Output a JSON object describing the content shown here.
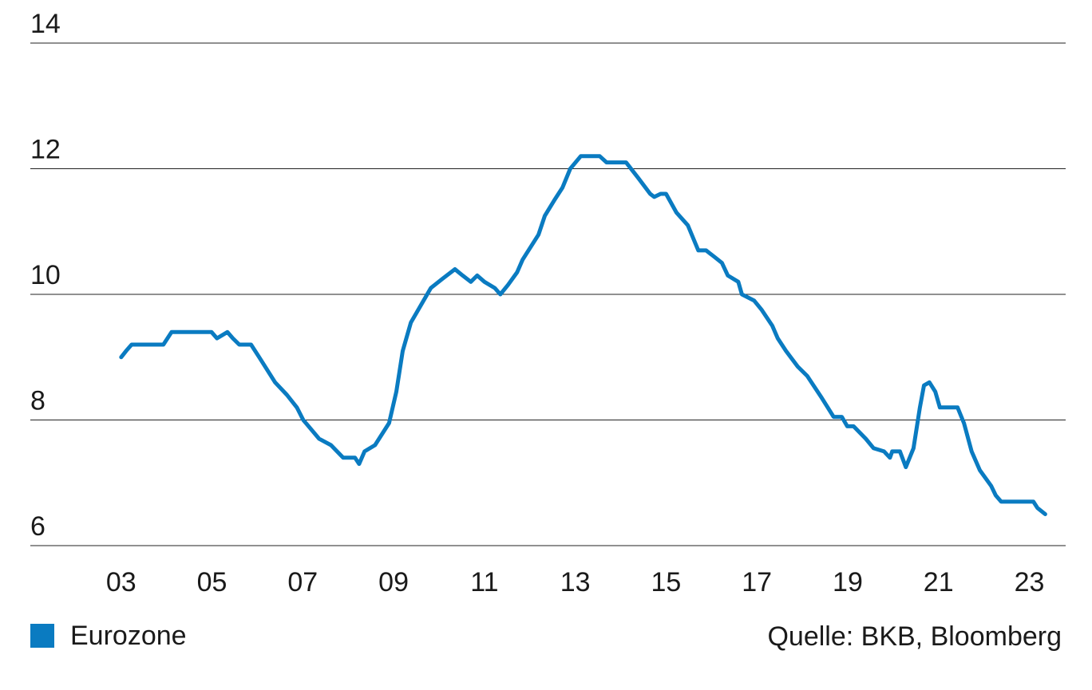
{
  "chart_data": {
    "type": "line",
    "source": "Quelle: BKB, Bloomberg",
    "legend": "bottom-left",
    "grid": true,
    "xlim": [
      1,
      23.8
    ],
    "ylim": [
      6,
      14
    ],
    "yticks": [
      6,
      8,
      10,
      12,
      14
    ],
    "xticks": [
      {
        "value": 3,
        "label": "03"
      },
      {
        "value": 5,
        "label": "05"
      },
      {
        "value": 7,
        "label": "07"
      },
      {
        "value": 9,
        "label": "09"
      },
      {
        "value": 11,
        "label": "11"
      },
      {
        "value": 13,
        "label": "13"
      },
      {
        "value": 15,
        "label": "15"
      },
      {
        "value": 17,
        "label": "17"
      },
      {
        "value": 19,
        "label": "19"
      },
      {
        "value": 21,
        "label": "21"
      },
      {
        "value": 23,
        "label": "23"
      }
    ],
    "x": [
      3.0,
      3.11,
      3.23,
      3.4,
      3.93,
      4.11,
      4.99,
      5.11,
      5.34,
      5.46,
      5.6,
      5.86,
      6.04,
      6.39,
      6.65,
      6.87,
      7.01,
      7.36,
      7.62,
      7.89,
      8.15,
      8.24,
      8.36,
      8.59,
      8.9,
      9.06,
      9.2,
      9.38,
      9.82,
      10.08,
      10.35,
      10.52,
      10.7,
      10.84,
      11.0,
      11.23,
      11.35,
      11.52,
      11.72,
      11.84,
      12.19,
      12.33,
      12.54,
      12.72,
      12.89,
      13.12,
      13.54,
      13.69,
      13.95,
      14.12,
      14.39,
      14.65,
      14.74,
      14.88,
      15.0,
      15.23,
      15.48,
      15.71,
      15.88,
      16.06,
      16.23,
      16.36,
      16.59,
      16.67,
      16.94,
      17.11,
      17.34,
      17.46,
      17.64,
      17.9,
      18.11,
      18.43,
      18.69,
      18.87,
      18.99,
      19.13,
      19.4,
      19.57,
      19.8,
      19.93,
      19.98,
      20.15,
      20.28,
      20.45,
      20.59,
      20.68,
      20.8,
      20.93,
      21.03,
      21.24,
      21.42,
      21.56,
      21.73,
      21.91,
      22.16,
      22.26,
      22.38,
      23.09,
      23.18,
      23.35
    ],
    "series": [
      {
        "name": "Eurozone",
        "color": "#0a7bc1",
        "values": [
          9.0,
          9.1,
          9.2,
          9.2,
          9.2,
          9.4,
          9.4,
          9.3,
          9.4,
          9.3,
          9.2,
          9.2,
          9.0,
          8.6,
          8.4,
          8.2,
          8.0,
          7.7,
          7.6,
          7.4,
          7.4,
          7.3,
          7.5,
          7.6,
          7.95,
          8.45,
          9.1,
          9.55,
          10.1,
          10.25,
          10.4,
          10.3,
          10.2,
          10.3,
          10.2,
          10.1,
          10.0,
          10.15,
          10.35,
          10.55,
          10.95,
          11.25,
          11.5,
          11.7,
          12.0,
          12.2,
          12.2,
          12.1,
          12.1,
          12.1,
          11.85,
          11.6,
          11.55,
          11.6,
          11.6,
          11.3,
          11.1,
          10.7,
          10.7,
          10.6,
          10.5,
          10.3,
          10.2,
          10.0,
          9.9,
          9.75,
          9.5,
          9.3,
          9.1,
          8.85,
          8.7,
          8.35,
          8.05,
          8.05,
          7.9,
          7.9,
          7.7,
          7.55,
          7.5,
          7.4,
          7.5,
          7.5,
          7.25,
          7.55,
          8.2,
          8.55,
          8.6,
          8.45,
          8.2,
          8.2,
          8.2,
          7.95,
          7.5,
          7.2,
          6.95,
          6.8,
          6.7,
          6.7,
          6.6,
          6.5
        ]
      }
    ]
  }
}
